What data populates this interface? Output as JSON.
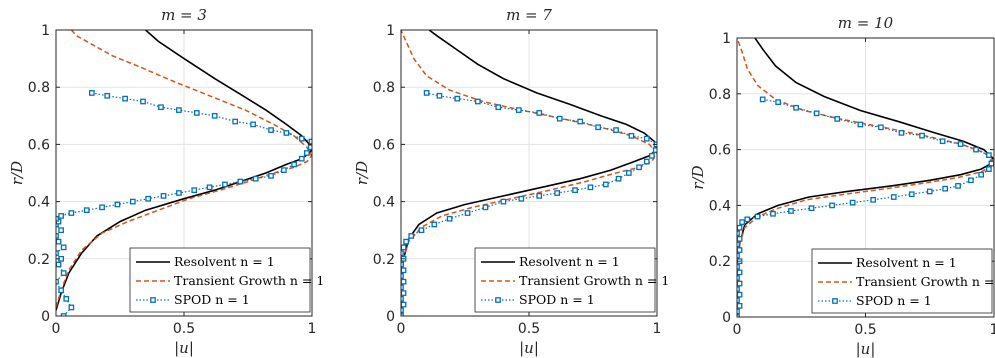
{
  "chart_data": [
    {
      "type": "line",
      "title": "m = 3",
      "xlabel": "|u|",
      "ylabel": "r/D",
      "xlim": [
        0,
        1
      ],
      "ylim": [
        0,
        1
      ],
      "xticks": [
        "0",
        "0.5",
        "1"
      ],
      "yticks": [
        "0",
        "0.2",
        "0.4",
        "0.6",
        "0.8",
        "1"
      ],
      "grid": true,
      "legend_position": "bottom-right",
      "legend": [
        "Resolvent n = 1",
        "Transient Growth n = 1",
        "SPOD n = 1"
      ],
      "series": [
        {
          "name": "Resolvent n = 1",
          "color": "#000000",
          "style": "solid",
          "x": [
            0.0,
            0.02,
            0.05,
            0.1,
            0.16,
            0.25,
            0.35,
            0.5,
            0.62,
            0.72,
            0.82,
            0.9,
            0.96,
            0.99,
            0.998,
            0.99,
            0.96,
            0.9,
            0.82,
            0.73,
            0.62,
            0.5,
            0.4,
            0.35
          ],
          "y": [
            0.02,
            0.08,
            0.15,
            0.22,
            0.28,
            0.33,
            0.37,
            0.41,
            0.44,
            0.47,
            0.5,
            0.53,
            0.55,
            0.57,
            0.58,
            0.6,
            0.63,
            0.67,
            0.72,
            0.77,
            0.83,
            0.9,
            0.96,
            1.0
          ]
        },
        {
          "name": "Transient Growth n = 1",
          "color": "#d9541a",
          "style": "dashed",
          "x": [
            0.0,
            0.02,
            0.05,
            0.1,
            0.18,
            0.28,
            0.4,
            0.52,
            0.64,
            0.75,
            0.85,
            0.93,
            0.98,
            0.998,
            0.98,
            0.93,
            0.85,
            0.74,
            0.6,
            0.46,
            0.33,
            0.22,
            0.14,
            0.08,
            0.06
          ],
          "y": [
            0.03,
            0.09,
            0.16,
            0.23,
            0.29,
            0.33,
            0.37,
            0.41,
            0.44,
            0.47,
            0.5,
            0.52,
            0.54,
            0.56,
            0.59,
            0.63,
            0.67,
            0.72,
            0.77,
            0.82,
            0.87,
            0.91,
            0.95,
            0.98,
            1.0
          ]
        },
        {
          "name": "SPOD n = 1",
          "color": "#0072bd",
          "style": "dotted",
          "marker": "square",
          "x": [
            0.03,
            0.06,
            0.04,
            0.02,
            0.0,
            0.03,
            0.01,
            0.02,
            0.0,
            0.03,
            0.01,
            0.0,
            0.02,
            0.0,
            0.01,
            0.0,
            0.02,
            0.06,
            0.12,
            0.18,
            0.24,
            0.3,
            0.36,
            0.42,
            0.48,
            0.54,
            0.6,
            0.66,
            0.72,
            0.78,
            0.84,
            0.89,
            0.93,
            0.96,
            0.98,
            0.995,
            0.998,
            0.96,
            0.9,
            0.84,
            0.77,
            0.7,
            0.62,
            0.55,
            0.48,
            0.41,
            0.34,
            0.27,
            0.2,
            0.14
          ],
          "y": [
            0.0,
            0.03,
            0.06,
            0.09,
            0.12,
            0.15,
            0.18,
            0.2,
            0.22,
            0.24,
            0.26,
            0.28,
            0.3,
            0.32,
            0.33,
            0.34,
            0.35,
            0.36,
            0.37,
            0.38,
            0.39,
            0.4,
            0.41,
            0.42,
            0.43,
            0.44,
            0.45,
            0.46,
            0.47,
            0.48,
            0.49,
            0.51,
            0.53,
            0.55,
            0.57,
            0.59,
            0.61,
            0.62,
            0.64,
            0.65,
            0.67,
            0.68,
            0.7,
            0.71,
            0.72,
            0.73,
            0.75,
            0.76,
            0.77,
            0.78
          ]
        }
      ]
    },
    {
      "type": "line",
      "title": "m = 7",
      "xlabel": "|u|",
      "ylabel": "r/D",
      "xlim": [
        0,
        1
      ],
      "ylim": [
        0,
        1
      ],
      "xticks": [
        "0",
        "0.5",
        "1"
      ],
      "yticks": [
        "0",
        "0.2",
        "0.4",
        "0.6",
        "0.8",
        "1"
      ],
      "grid": true,
      "legend_position": "bottom-right",
      "legend": [
        "Resolvent n = 1",
        "Transient Growth n = 1",
        "SPOD n = 1"
      ],
      "series": [
        {
          "name": "Resolvent n = 1",
          "color": "#000000",
          "style": "solid",
          "x": [
            0.0,
            0.0,
            0.01,
            0.03,
            0.07,
            0.14,
            0.25,
            0.4,
            0.55,
            0.7,
            0.82,
            0.91,
            0.97,
            0.997,
            0.99,
            0.95,
            0.88,
            0.78,
            0.66,
            0.53,
            0.4,
            0.3,
            0.22,
            0.14,
            0.11
          ],
          "y": [
            0.0,
            0.1,
            0.2,
            0.27,
            0.32,
            0.36,
            0.39,
            0.42,
            0.45,
            0.48,
            0.51,
            0.54,
            0.56,
            0.58,
            0.61,
            0.64,
            0.67,
            0.7,
            0.74,
            0.78,
            0.83,
            0.88,
            0.93,
            0.98,
            1.0
          ]
        },
        {
          "name": "Transient Growth n = 1",
          "color": "#d9541a",
          "style": "dashed",
          "x": [
            0.0,
            0.0,
            0.01,
            0.03,
            0.08,
            0.16,
            0.28,
            0.43,
            0.58,
            0.72,
            0.84,
            0.93,
            0.98,
            0.998,
            0.97,
            0.9,
            0.78,
            0.63,
            0.47,
            0.32,
            0.19,
            0.1,
            0.05,
            0.02,
            0.0
          ],
          "y": [
            0.0,
            0.1,
            0.2,
            0.26,
            0.31,
            0.35,
            0.38,
            0.41,
            0.44,
            0.47,
            0.5,
            0.52,
            0.54,
            0.57,
            0.6,
            0.63,
            0.66,
            0.69,
            0.72,
            0.75,
            0.79,
            0.84,
            0.9,
            0.96,
            1.0
          ]
        },
        {
          "name": "SPOD n = 1",
          "color": "#0072bd",
          "style": "dotted",
          "marker": "square",
          "x": [
            0.0,
            0.0,
            0.01,
            0.0,
            0.01,
            0.0,
            0.01,
            0.0,
            0.01,
            0.0,
            0.01,
            0.0,
            0.01,
            0.02,
            0.04,
            0.08,
            0.13,
            0.19,
            0.26,
            0.33,
            0.4,
            0.47,
            0.54,
            0.61,
            0.68,
            0.74,
            0.8,
            0.85,
            0.89,
            0.93,
            0.96,
            0.98,
            0.995,
            0.998,
            0.96,
            0.9,
            0.84,
            0.77,
            0.7,
            0.62,
            0.54,
            0.46,
            0.38,
            0.3,
            0.22,
            0.15,
            0.1
          ],
          "y": [
            0.0,
            0.02,
            0.04,
            0.06,
            0.08,
            0.1,
            0.12,
            0.14,
            0.16,
            0.18,
            0.2,
            0.22,
            0.24,
            0.26,
            0.28,
            0.3,
            0.32,
            0.34,
            0.36,
            0.38,
            0.4,
            0.41,
            0.42,
            0.43,
            0.44,
            0.45,
            0.46,
            0.48,
            0.5,
            0.52,
            0.54,
            0.56,
            0.58,
            0.6,
            0.62,
            0.63,
            0.65,
            0.66,
            0.68,
            0.69,
            0.71,
            0.72,
            0.73,
            0.75,
            0.76,
            0.77,
            0.78
          ]
        }
      ]
    },
    {
      "type": "line",
      "title": "m = 10",
      "xlabel": "|u|",
      "ylabel": "r/D",
      "xlim": [
        0,
        1
      ],
      "ylim": [
        0,
        1
      ],
      "xticks": [
        "0",
        "0.5",
        "1"
      ],
      "yticks": [
        "0",
        "0.2",
        "0.4",
        "0.6",
        "0.8",
        "1"
      ],
      "grid": true,
      "legend_position": "bottom-right",
      "legend": [
        "Resolvent n = 1",
        "Transient Growth n = 1",
        "SPOD n = 1"
      ],
      "series": [
        {
          "name": "Resolvent n = 1",
          "color": "#000000",
          "style": "solid",
          "x": [
            0.0,
            0.0,
            0.01,
            0.03,
            0.08,
            0.16,
            0.28,
            0.43,
            0.6,
            0.75,
            0.87,
            0.95,
            0.99,
            0.995,
            0.96,
            0.88,
            0.77,
            0.63,
            0.48,
            0.34,
            0.23,
            0.15,
            0.1,
            0.07
          ],
          "y": [
            0.0,
            0.15,
            0.26,
            0.33,
            0.37,
            0.4,
            0.43,
            0.45,
            0.47,
            0.49,
            0.51,
            0.53,
            0.55,
            0.57,
            0.6,
            0.63,
            0.66,
            0.7,
            0.74,
            0.79,
            0.84,
            0.9,
            0.96,
            1.0
          ]
        },
        {
          "name": "Transient Growth n = 1",
          "color": "#d9541a",
          "style": "dashed",
          "x": [
            0.0,
            0.0,
            0.01,
            0.03,
            0.08,
            0.16,
            0.27,
            0.42,
            0.58,
            0.73,
            0.86,
            0.95,
            0.99,
            0.998,
            0.96,
            0.87,
            0.73,
            0.57,
            0.4,
            0.26,
            0.15,
            0.08,
            0.04,
            0.02,
            0.0
          ],
          "y": [
            0.0,
            0.15,
            0.26,
            0.32,
            0.36,
            0.39,
            0.42,
            0.44,
            0.46,
            0.48,
            0.5,
            0.52,
            0.54,
            0.56,
            0.59,
            0.62,
            0.65,
            0.68,
            0.71,
            0.74,
            0.78,
            0.83,
            0.89,
            0.95,
            1.0
          ]
        },
        {
          "name": "SPOD n = 1",
          "color": "#0072bd",
          "style": "dotted",
          "marker": "square",
          "x": [
            0.0,
            0.0,
            0.01,
            0.0,
            0.01,
            0.0,
            0.01,
            0.0,
            0.01,
            0.0,
            0.01,
            0.0,
            0.01,
            0.0,
            0.01,
            0.0,
            0.01,
            0.02,
            0.04,
            0.08,
            0.14,
            0.21,
            0.29,
            0.37,
            0.45,
            0.53,
            0.61,
            0.68,
            0.75,
            0.81,
            0.86,
            0.91,
            0.95,
            0.98,
            0.99,
            0.98,
            0.93,
            0.87,
            0.8,
            0.72,
            0.64,
            0.56,
            0.48,
            0.39,
            0.31,
            0.23,
            0.16,
            0.1
          ],
          "y": [
            0.0,
            0.02,
            0.04,
            0.06,
            0.08,
            0.1,
            0.12,
            0.14,
            0.16,
            0.18,
            0.2,
            0.22,
            0.24,
            0.26,
            0.28,
            0.3,
            0.32,
            0.34,
            0.35,
            0.36,
            0.37,
            0.38,
            0.39,
            0.4,
            0.41,
            0.42,
            0.43,
            0.44,
            0.45,
            0.46,
            0.47,
            0.49,
            0.51,
            0.53,
            0.55,
            0.58,
            0.6,
            0.62,
            0.63,
            0.65,
            0.66,
            0.68,
            0.69,
            0.71,
            0.73,
            0.75,
            0.77,
            0.78
          ]
        }
      ]
    }
  ]
}
